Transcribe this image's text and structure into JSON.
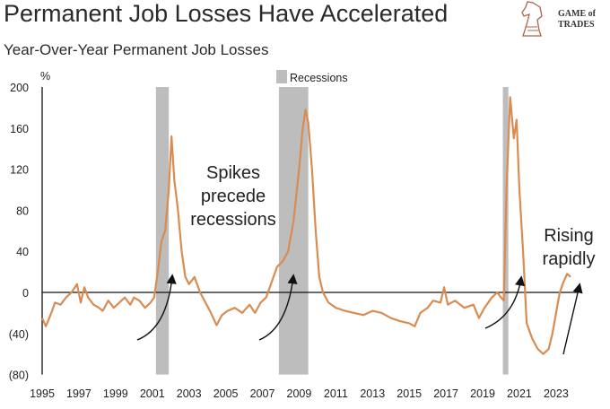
{
  "title": "Permanent Job Losses Have Accelerated",
  "subtitle": "Year-Over-Year Permanent Job Losses",
  "logo": {
    "line1": "GAME of",
    "line2": "TRADES"
  },
  "chart_data": {
    "type": "line",
    "title": "Permanent Job Losses Have Accelerated",
    "subtitle": "Year-Over-Year Permanent Job Losses",
    "ylabel": "%",
    "ylim": [
      -80,
      200
    ],
    "yticks": [
      200,
      160,
      120,
      80,
      40,
      0,
      -40,
      -80
    ],
    "ytick_labels": [
      "200",
      "160",
      "120",
      "80",
      "40",
      "0",
      "(40)",
      "(80)"
    ],
    "xlim": [
      1995,
      2024.2
    ],
    "xticks": [
      "1995",
      "1997",
      "1999",
      "2001",
      "2003",
      "2005",
      "2007",
      "2009",
      "2011",
      "2013",
      "2015",
      "2017",
      "2019",
      "2021",
      "2023"
    ],
    "legend": {
      "label": "Recessions",
      "placement": "top-center"
    },
    "recessions": [
      [
        2001.2,
        2001.9
      ],
      [
        2007.9,
        2009.5
      ],
      [
        2020.1,
        2020.4
      ]
    ],
    "series": [
      {
        "name": "Year-Over-Year Permanent Job Losses",
        "color": "#d98c52",
        "points": [
          [
            1995.0,
            -25
          ],
          [
            1995.2,
            -33
          ],
          [
            1995.5,
            -20
          ],
          [
            1995.7,
            -10
          ],
          [
            1996.0,
            -12
          ],
          [
            1996.3,
            -5
          ],
          [
            1996.6,
            0
          ],
          [
            1996.9,
            8
          ],
          [
            1997.1,
            -10
          ],
          [
            1997.3,
            5
          ],
          [
            1997.5,
            -5
          ],
          [
            1997.8,
            -12
          ],
          [
            1998.1,
            -15
          ],
          [
            1998.3,
            -18
          ],
          [
            1998.6,
            -8
          ],
          [
            1998.9,
            -15
          ],
          [
            1999.2,
            -10
          ],
          [
            1999.5,
            -5
          ],
          [
            1999.8,
            -12
          ],
          [
            2000.0,
            -5
          ],
          [
            2000.3,
            -8
          ],
          [
            2000.6,
            -15
          ],
          [
            2000.9,
            -10
          ],
          [
            2001.1,
            -5
          ],
          [
            2001.3,
            20
          ],
          [
            2001.5,
            50
          ],
          [
            2001.7,
            60
          ],
          [
            2001.9,
            100
          ],
          [
            2002.05,
            152
          ],
          [
            2002.2,
            110
          ],
          [
            2002.4,
            80
          ],
          [
            2002.6,
            40
          ],
          [
            2002.8,
            15
          ],
          [
            2003.0,
            8
          ],
          [
            2003.3,
            15
          ],
          [
            2003.6,
            0
          ],
          [
            2003.9,
            -10
          ],
          [
            2004.2,
            -20
          ],
          [
            2004.5,
            -32
          ],
          [
            2004.8,
            -22
          ],
          [
            2005.1,
            -18
          ],
          [
            2005.5,
            -15
          ],
          [
            2005.9,
            -20
          ],
          [
            2006.3,
            -12
          ],
          [
            2006.6,
            -20
          ],
          [
            2006.9,
            -10
          ],
          [
            2007.2,
            -5
          ],
          [
            2007.5,
            10
          ],
          [
            2007.8,
            25
          ],
          [
            2008.1,
            30
          ],
          [
            2008.4,
            40
          ],
          [
            2008.7,
            70
          ],
          [
            2009.0,
            120
          ],
          [
            2009.2,
            160
          ],
          [
            2009.35,
            178
          ],
          [
            2009.5,
            165
          ],
          [
            2009.7,
            120
          ],
          [
            2009.9,
            60
          ],
          [
            2010.1,
            15
          ],
          [
            2010.3,
            0
          ],
          [
            2010.6,
            -10
          ],
          [
            2011.0,
            -15
          ],
          [
            2011.5,
            -18
          ],
          [
            2012.0,
            -20
          ],
          [
            2012.5,
            -22
          ],
          [
            2013.0,
            -18
          ],
          [
            2013.5,
            -20
          ],
          [
            2014.0,
            -25
          ],
          [
            2014.5,
            -28
          ],
          [
            2015.0,
            -30
          ],
          [
            2015.3,
            -33
          ],
          [
            2015.6,
            -20
          ],
          [
            2016.0,
            -15
          ],
          [
            2016.3,
            -8
          ],
          [
            2016.7,
            -10
          ],
          [
            2016.9,
            5
          ],
          [
            2017.1,
            -12
          ],
          [
            2017.5,
            -8
          ],
          [
            2018.0,
            -15
          ],
          [
            2018.5,
            -12
          ],
          [
            2018.8,
            -25
          ],
          [
            2019.1,
            -15
          ],
          [
            2019.5,
            -5
          ],
          [
            2019.8,
            0
          ],
          [
            2020.0,
            -5
          ],
          [
            2020.15,
            -8
          ],
          [
            2020.3,
            100
          ],
          [
            2020.5,
            190
          ],
          [
            2020.7,
            150
          ],
          [
            2020.85,
            168
          ],
          [
            2021.0,
            100
          ],
          [
            2021.2,
            40
          ],
          [
            2021.4,
            -30
          ],
          [
            2021.7,
            -45
          ],
          [
            2022.0,
            -55
          ],
          [
            2022.3,
            -60
          ],
          [
            2022.6,
            -55
          ],
          [
            2022.8,
            -40
          ],
          [
            2023.0,
            -20
          ],
          [
            2023.2,
            0
          ],
          [
            2023.4,
            10
          ],
          [
            2023.6,
            18
          ],
          [
            2023.8,
            15
          ]
        ]
      }
    ],
    "annotations": [
      {
        "text": [
          "Spikes",
          "precede",
          "recessions"
        ]
      },
      {
        "text": [
          "Rising",
          "rapidly"
        ]
      }
    ]
  }
}
